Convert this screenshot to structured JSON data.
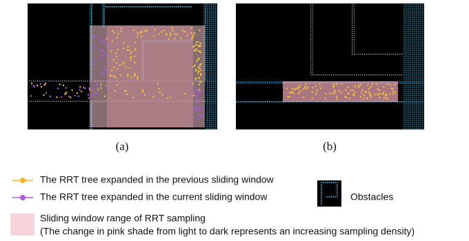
{
  "figure": {
    "panels": [
      {
        "caption": "(a)"
      },
      {
        "caption": "(b)"
      }
    ],
    "legend": {
      "previous_tree": "The RRT tree expanded in the previous sliding window",
      "current_tree": "The RRT tree expanded in the current sliding window",
      "obstacles": "Obstacles",
      "window_range": "Sliding window range of RRT sampling",
      "window_note": "(The change in pink shade from light to dark represents an increasing sampling density)"
    }
  }
}
